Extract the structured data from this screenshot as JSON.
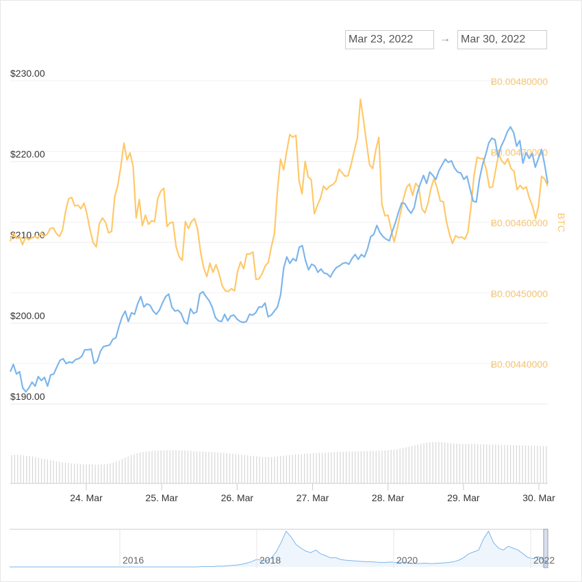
{
  "range_selector": {
    "from_value": "Mar 23, 2022",
    "to_value": "Mar 30, 2022",
    "arrow": "→"
  },
  "colors": {
    "usd_series": "#7cb5ec",
    "btc_series": "#ffc868",
    "volume_bars": "#d6d6d6",
    "navigator_line": "#7cb5ec",
    "grid": "#e9e9e9",
    "axis_text": "#333333",
    "btc_axis_text": "#f7c46f"
  },
  "chart_data": {
    "type": "line",
    "title": "",
    "x_start": "2022-03-23",
    "x_end": "2022-03-30",
    "x_ticks": [
      "24. Mar",
      "25. Mar",
      "26. Mar",
      "27. Mar",
      "28. Mar",
      "29. Mar",
      "30. Mar"
    ],
    "y_left": {
      "ticks": [
        "$190.00",
        "$200.00",
        "$210.00",
        "$220.00",
        "$230.00"
      ],
      "range": [
        185,
        232
      ]
    },
    "y_right": {
      "title": "BTC",
      "ticks": [
        "Ƀ0.00440000",
        "Ƀ0.00450000",
        "Ƀ0.00460000",
        "Ƀ0.00470000",
        "Ƀ0.00480000"
      ],
      "range": [
        0.00431,
        0.00482
      ]
    },
    "grid": true,
    "series": [
      {
        "name": "",
        "axis": "left",
        "values": [
          194.0,
          194.9,
          193.7,
          194.0,
          192.0,
          191.5,
          192.0,
          192.7,
          192.2,
          193.4,
          192.9,
          193.3,
          192.2,
          193.6,
          193.7,
          194.6,
          195.4,
          195.6,
          195.0,
          195.2,
          195.1,
          195.5,
          195.6,
          195.9,
          196.7,
          196.7,
          196.8,
          195.0,
          195.3,
          196.5,
          197.1,
          197.2,
          197.3,
          198.0,
          198.2,
          199.6,
          200.8,
          201.5,
          200.2,
          201.3,
          201.1,
          202.4,
          203.3,
          202.0,
          202.4,
          202.2,
          201.5,
          201.1,
          201.6,
          202.5,
          203.3,
          203.6,
          202.0,
          201.5,
          201.6,
          201.2,
          200.2,
          199.9,
          201.8,
          201.2,
          201.4,
          203.6,
          203.9,
          203.3,
          202.8,
          202.0,
          200.7,
          200.3,
          200.2,
          201.1,
          200.3,
          200.9,
          201.0,
          200.5,
          200.2,
          200.1,
          200.2,
          201.1,
          201.0,
          201.3,
          202.0,
          202.0,
          202.5,
          200.8,
          201.0,
          201.5,
          202.0,
          203.5,
          206.8,
          208.2,
          207.4,
          208.0,
          207.7,
          209.4,
          209.6,
          207.8,
          206.6,
          207.3,
          207.1,
          206.3,
          206.7,
          206.2,
          206.1,
          205.7,
          206.4,
          206.9,
          207.1,
          207.4,
          207.5,
          207.3,
          208.0,
          208.5,
          207.9,
          208.5,
          208.2,
          209.2,
          210.7,
          211.0,
          212.1,
          211.2,
          210.7,
          210.4,
          210.2,
          211.4,
          212.5,
          213.8,
          214.9,
          214.8,
          214.1,
          213.6,
          214.3,
          216.1,
          217.3,
          218.3,
          217.3,
          218.7,
          218.3,
          217.8,
          218.9,
          219.6,
          220.3,
          219.9,
          220.1,
          219.2,
          218.7,
          218.6,
          217.8,
          218.2,
          216.6,
          215.1,
          215.0,
          217.8,
          219.6,
          220.8,
          222.3,
          222.9,
          222.7,
          220.6,
          221.9,
          222.7,
          223.7,
          224.3,
          223.6,
          221.9,
          222.6,
          219.8,
          221.1,
          220.4,
          221.0,
          219.3,
          220.4,
          221.5,
          219.6,
          217.3
        ]
      },
      {
        "name": "",
        "axis": "right",
        "values": [
          0.004573,
          0.004585,
          0.004577,
          0.00458,
          0.004568,
          0.004579,
          0.004575,
          0.004578,
          0.00458,
          0.004577,
          0.004585,
          0.00458,
          0.004583,
          0.004591,
          0.004592,
          0.004584,
          0.00458,
          0.004589,
          0.004615,
          0.004633,
          0.004635,
          0.004623,
          0.004624,
          0.004619,
          0.004627,
          0.004611,
          0.004589,
          0.004571,
          0.004565,
          0.004598,
          0.004606,
          0.0046,
          0.004585,
          0.004587,
          0.004636,
          0.004652,
          0.004679,
          0.004712,
          0.004688,
          0.004698,
          0.004679,
          0.004606,
          0.004632,
          0.004595,
          0.00461,
          0.004597,
          0.004602,
          0.004601,
          0.004633,
          0.004644,
          0.004648,
          0.004594,
          0.004599,
          0.0046,
          0.004565,
          0.004551,
          0.004546,
          0.004601,
          0.004591,
          0.004601,
          0.004605,
          0.00459,
          0.004557,
          0.004535,
          0.004523,
          0.004542,
          0.004529,
          0.00454,
          0.004527,
          0.00451,
          0.004503,
          0.004502,
          0.004506,
          0.004503,
          0.00453,
          0.004544,
          0.004534,
          0.004555,
          0.004555,
          0.004558,
          0.004519,
          0.00452,
          0.004527,
          0.004538,
          0.004543,
          0.004565,
          0.004584,
          0.004646,
          0.004689,
          0.004674,
          0.0047,
          0.004724,
          0.00472,
          0.004723,
          0.004659,
          0.00464,
          0.004686,
          0.004664,
          0.00466,
          0.004612,
          0.004624,
          0.004634,
          0.004651,
          0.004646,
          0.004651,
          0.004653,
          0.004658,
          0.004675,
          0.00467,
          0.004665,
          0.004666,
          0.004682,
          0.004701,
          0.004719,
          0.004774,
          0.004745,
          0.004712,
          0.004681,
          0.004676,
          0.004702,
          0.00472,
          0.004625,
          0.004609,
          0.00461,
          0.00459,
          0.004572,
          0.004591,
          0.004612,
          0.004633,
          0.004649,
          0.004654,
          0.004638,
          0.004655,
          0.00465,
          0.004619,
          0.004613,
          0.004627,
          0.004648,
          0.004662,
          0.004648,
          0.00463,
          0.004629,
          0.004601,
          0.004583,
          0.00457,
          0.004581,
          0.004578,
          0.004579,
          0.004576,
          0.004586,
          0.004622,
          0.004666,
          0.004692,
          0.00469,
          0.00469,
          0.004674,
          0.004649,
          0.00465,
          0.004673,
          0.004696,
          0.004687,
          0.004682,
          0.00469,
          0.004676,
          0.004672,
          0.004646,
          0.004652,
          0.004647,
          0.00465,
          0.004634,
          0.004623,
          0.004605,
          0.004623,
          0.004665,
          0.004661,
          0.004651
        ]
      }
    ],
    "volume": [
      0.86,
      0.87,
      0.87,
      0.86,
      0.85,
      0.84,
      0.83,
      0.82,
      0.8,
      0.78,
      0.76,
      0.75,
      0.73,
      0.71,
      0.69,
      0.67,
      0.66,
      0.64,
      0.63,
      0.62,
      0.61,
      0.6,
      0.6,
      0.59,
      0.59,
      0.58,
      0.58,
      0.58,
      0.57,
      0.57,
      0.58,
      0.58,
      0.59,
      0.61,
      0.63,
      0.66,
      0.7,
      0.74,
      0.78,
      0.82,
      0.86,
      0.89,
      0.92,
      0.94,
      0.96,
      0.97,
      0.98,
      0.99,
      0.99,
      1.0,
      1.0,
      1.0,
      1.01,
      1.01,
      1.01,
      1.01,
      1.0,
      1.0,
      1.0,
      0.99,
      0.99,
      0.98,
      0.98,
      0.97,
      0.97,
      0.96,
      0.96,
      0.95,
      0.95,
      0.94,
      0.94,
      0.93,
      0.92,
      0.91,
      0.9,
      0.89,
      0.88,
      0.87,
      0.86,
      0.85,
      0.84,
      0.83,
      0.82,
      0.81,
      0.8,
      0.8,
      0.8,
      0.8,
      0.81,
      0.82,
      0.83,
      0.84,
      0.85,
      0.86,
      0.87,
      0.88,
      0.89,
      0.89,
      0.9,
      0.91,
      0.91,
      0.92,
      0.92,
      0.93,
      0.93,
      0.94,
      0.94,
      0.95,
      0.95,
      0.96,
      0.96,
      0.96,
      0.97,
      0.97,
      0.97,
      0.97,
      0.98,
      0.98,
      0.98,
      0.98,
      0.99,
      0.99,
      0.99,
      0.99,
      1.0,
      1.0,
      1.01,
      1.02,
      1.03,
      1.04,
      1.06,
      1.08,
      1.1,
      1.12,
      1.14,
      1.16,
      1.18,
      1.2,
      1.22,
      1.24,
      1.25,
      1.26,
      1.26,
      1.26,
      1.25,
      1.24,
      1.23,
      1.22,
      1.21,
      1.21,
      1.2,
      1.2,
      1.2,
      1.2,
      1.2,
      1.2,
      1.19,
      1.19,
      1.19,
      1.19,
      1.18,
      1.18,
      1.18,
      1.18,
      1.17,
      1.17,
      1.17,
      1.17,
      1.16,
      1.16,
      1.16,
      1.16,
      1.15,
      1.15,
      1.15,
      1.14,
      1.14,
      1.14,
      1.13,
      1.13
    ]
  },
  "navigator": {
    "year_labels": [
      "2016",
      "2018",
      "2020",
      "2022"
    ],
    "values": [
      0.0,
      0.0,
      0.0,
      0.0,
      0.0,
      0.0,
      0.0,
      0.0,
      0.0,
      0.0,
      0.0,
      0.0,
      0.0,
      0.0,
      0.0,
      0.0,
      0.0,
      0.0,
      0.0,
      0.0,
      0.0,
      0.0,
      0.0,
      0.0,
      0.0,
      0.0,
      0.0,
      0.0,
      0.0,
      0.0,
      0.0,
      0.0,
      0.0,
      0.0,
      0.0,
      0.0,
      0.0,
      0.0,
      0.0,
      0.01,
      0.01,
      0.01,
      0.02,
      0.02,
      0.03,
      0.04,
      0.05,
      0.07,
      0.1,
      0.14,
      0.2,
      0.18,
      0.16,
      0.24,
      0.4,
      0.65,
      0.95,
      0.8,
      0.6,
      0.5,
      0.42,
      0.38,
      0.45,
      0.35,
      0.3,
      0.24,
      0.25,
      0.2,
      0.18,
      0.17,
      0.16,
      0.15,
      0.14,
      0.14,
      0.13,
      0.12,
      0.12,
      0.13,
      0.12,
      0.11,
      0.12,
      0.1,
      0.09,
      0.09,
      0.1,
      0.09,
      0.09,
      0.1,
      0.11,
      0.12,
      0.14,
      0.18,
      0.25,
      0.35,
      0.4,
      0.45,
      0.75,
      0.95,
      0.65,
      0.5,
      0.45,
      0.55,
      0.5,
      0.45,
      0.35,
      0.25,
      0.22,
      0.28,
      0.2,
      0.12
    ]
  }
}
